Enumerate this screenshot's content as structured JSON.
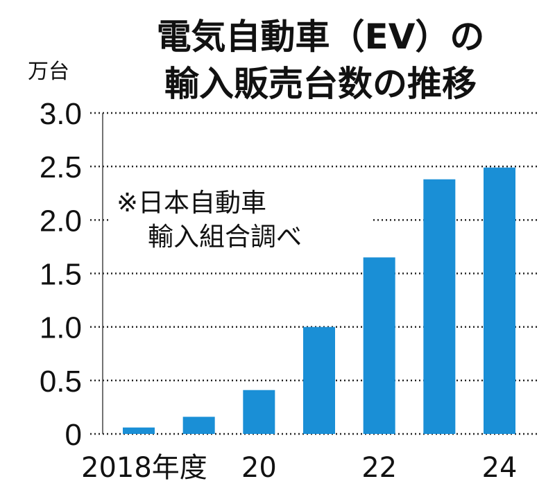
{
  "chart_data": {
    "type": "bar",
    "title_lines": [
      "電気自動車（EV）の",
      "輸入販売台数の推移"
    ],
    "ylabel": "万台",
    "ylim": [
      0,
      3.0
    ],
    "yticks": [
      "0",
      "0.5",
      "1.0",
      "1.5",
      "2.0",
      "2.5",
      "3.0"
    ],
    "ytick_values": [
      0,
      0.5,
      1.0,
      1.5,
      2.0,
      2.5,
      3.0
    ],
    "grid": "dotted horizontal",
    "categories": [
      "2018",
      "2019",
      "2020",
      "2021",
      "2022",
      "2023",
      "2024"
    ],
    "x_tick_labels": [
      "2018年度",
      "",
      "20",
      "",
      "22",
      "",
      "24"
    ],
    "values": [
      0.06,
      0.16,
      0.41,
      1.0,
      1.65,
      2.38,
      2.49
    ],
    "source_note_lines": [
      "※日本自動車",
      "輸入組合調べ"
    ],
    "bar_color": "#1a8fd6"
  }
}
